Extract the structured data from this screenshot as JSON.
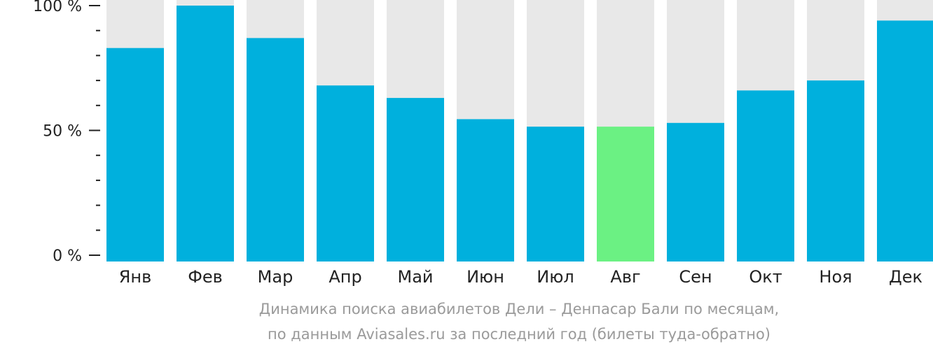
{
  "chart_data": {
    "type": "bar",
    "categories": [
      "Янв",
      "Фев",
      "Мар",
      "Апр",
      "Май",
      "Июн",
      "Июл",
      "Авг",
      "Сен",
      "Окт",
      "Ноя",
      "Дек"
    ],
    "values": [
      83,
      100,
      87,
      68,
      63,
      54.5,
      51.5,
      51.5,
      53,
      66,
      70,
      94
    ],
    "ylim": [
      0,
      100
    ],
    "y_ticks": [
      {
        "value": 0,
        "label": "0 %"
      },
      {
        "value": 50,
        "label": "50 %"
      },
      {
        "value": 100,
        "label": "100 %"
      }
    ],
    "minor_tick_step": 10,
    "highlight_category": "Авг",
    "colors": {
      "bar": "#00b0dd",
      "highlight": "#6bf183",
      "background_track": "#e8e8e8",
      "axis": "#222222",
      "caption": "#9a9a9a"
    },
    "caption_lines": [
      "Динамика поиска авиабилетов Дели – Денпасар Бали по месяцам,",
      "по данным Aviasales.ru за последний год (билеты туда-обратно)"
    ],
    "grid": false,
    "legend": "none"
  }
}
